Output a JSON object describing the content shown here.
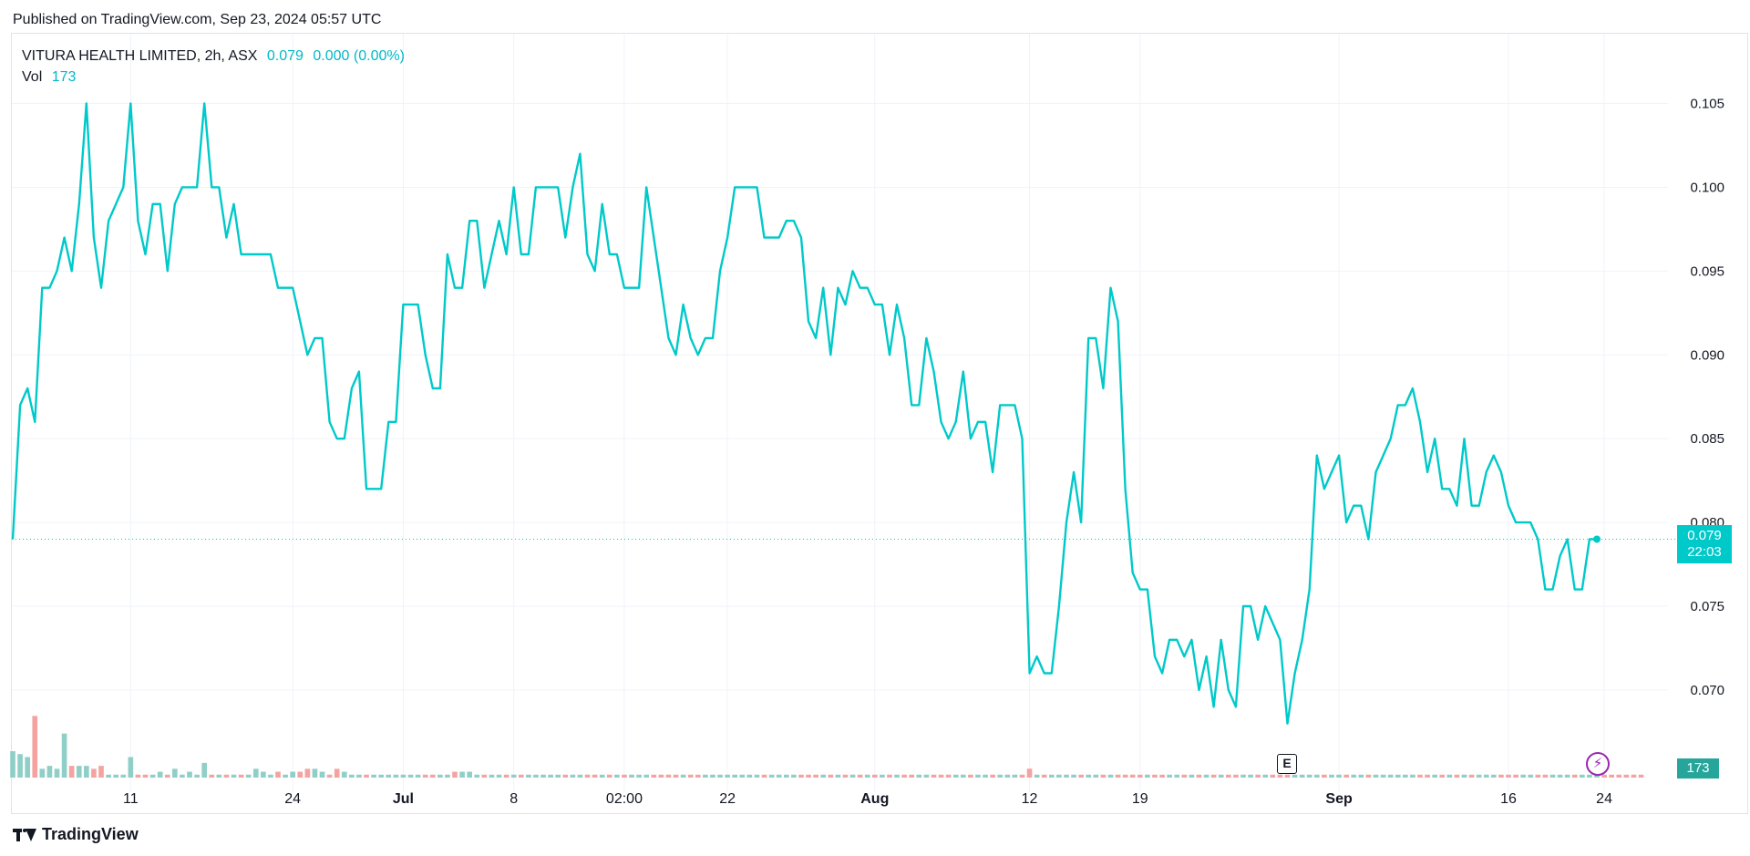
{
  "published": "Published on TradingView.com, Sep 23, 2024 05:57 UTC",
  "legend": {
    "symbol": "VITURA HEALTH LIMITED, 2h, ASX",
    "price": "0.079",
    "change": "0.000 (0.00%)",
    "vol_label": "Vol",
    "vol_value": "173"
  },
  "brand": "TradingView",
  "price_tag": {
    "price": "0.079",
    "countdown": "22:03"
  },
  "vol_tag": "173",
  "earnings_marker": "E",
  "flash_icon": "lightning-icon",
  "colors": {
    "line": "#00c9c9",
    "vol_up": "#8fcfc7",
    "vol_down": "#f4a3a0",
    "grid": "#f0f3fa",
    "text": "#131722"
  },
  "chart_data": {
    "type": "line",
    "title": "VITURA HEALTH LIMITED, 2h, ASX",
    "xlabel": "",
    "ylabel": "",
    "ylim": [
      0.0645,
      0.109
    ],
    "y_ticks": [
      "0.070",
      "0.075",
      "0.080",
      "0.085",
      "0.090",
      "0.095",
      "0.100",
      "0.105"
    ],
    "x_ticks": [
      {
        "label": "11",
        "i": 16,
        "bold": false
      },
      {
        "label": "24",
        "i": 38,
        "bold": false
      },
      {
        "label": "Jul",
        "i": 53,
        "bold": true
      },
      {
        "label": "8",
        "i": 68,
        "bold": false
      },
      {
        "label": "02:00",
        "i": 83,
        "bold": false
      },
      {
        "label": "22",
        "i": 97,
        "bold": false
      },
      {
        "label": "Aug",
        "i": 117,
        "bold": true
      },
      {
        "label": "12",
        "i": 138,
        "bold": false
      },
      {
        "label": "19",
        "i": 153,
        "bold": false
      },
      {
        "label": "Sep",
        "i": 180,
        "bold": true
      },
      {
        "label": "16",
        "i": 203,
        "bold": false
      },
      {
        "label": "24",
        "i": 216,
        "bold": false
      }
    ],
    "grid": true,
    "last_price_line": 0.079,
    "series": [
      {
        "values": [
          0.079,
          0.087,
          0.088,
          0.086,
          0.094,
          0.094,
          0.095,
          0.097,
          0.095,
          0.099,
          0.105,
          0.097,
          0.094,
          0.098,
          0.099,
          0.1,
          0.105,
          0.098,
          0.096,
          0.099,
          0.099,
          0.095,
          0.099,
          0.1,
          0.1,
          0.1,
          0.105,
          0.1,
          0.1,
          0.097,
          0.099,
          0.096,
          0.096,
          0.096,
          0.096,
          0.096,
          0.094,
          0.094,
          0.094,
          0.092,
          0.09,
          0.091,
          0.091,
          0.086,
          0.085,
          0.085,
          0.088,
          0.089,
          0.082,
          0.082,
          0.082,
          0.086,
          0.086,
          0.093,
          0.093,
          0.093,
          0.09,
          0.088,
          0.088,
          0.096,
          0.094,
          0.094,
          0.098,
          0.098,
          0.094,
          0.096,
          0.098,
          0.096,
          0.1,
          0.096,
          0.096,
          0.1,
          0.1,
          0.1,
          0.1,
          0.097,
          0.1,
          0.102,
          0.096,
          0.095,
          0.099,
          0.096,
          0.096,
          0.094,
          0.094,
          0.094,
          0.1,
          0.097,
          0.094,
          0.091,
          0.09,
          0.093,
          0.091,
          0.09,
          0.091,
          0.091,
          0.095,
          0.097,
          0.1,
          0.1,
          0.1,
          0.1,
          0.097,
          0.097,
          0.097,
          0.098,
          0.098,
          0.097,
          0.092,
          0.091,
          0.094,
          0.09,
          0.094,
          0.093,
          0.095,
          0.094,
          0.094,
          0.093,
          0.093,
          0.09,
          0.093,
          0.091,
          0.087,
          0.087,
          0.091,
          0.089,
          0.086,
          0.085,
          0.086,
          0.089,
          0.085,
          0.086,
          0.086,
          0.083,
          0.087,
          0.087,
          0.087,
          0.085,
          0.071,
          0.072,
          0.071,
          0.071,
          0.075,
          0.08,
          0.083,
          0.08,
          0.091,
          0.091,
          0.088,
          0.094,
          0.092,
          0.082,
          0.077,
          0.076,
          0.076,
          0.072,
          0.071,
          0.073,
          0.073,
          0.072,
          0.073,
          0.07,
          0.072,
          0.069,
          0.073,
          0.07,
          0.069,
          0.075,
          0.075,
          0.073,
          0.075,
          0.074,
          0.073,
          0.068,
          0.071,
          0.073,
          0.076,
          0.084,
          0.082,
          0.083,
          0.084,
          0.08,
          0.081,
          0.081,
          0.079,
          0.083,
          0.084,
          0.085,
          0.087,
          0.087,
          0.088,
          0.086,
          0.083,
          0.085,
          0.082,
          0.082,
          0.081,
          0.085,
          0.081,
          0.081,
          0.083,
          0.084,
          0.083,
          0.081,
          0.08,
          0.08,
          0.08,
          0.079,
          0.076,
          0.076,
          0.078,
          0.079,
          0.076,
          0.076,
          0.079,
          0.079
        ]
      },
      {
        "name": "Vol",
        "values": [
          9,
          8,
          7,
          21,
          3,
          4,
          3,
          15,
          4,
          4,
          4,
          3,
          4,
          1,
          1,
          1,
          7,
          1,
          1,
          1,
          2,
          1,
          3,
          1,
          2,
          1,
          5,
          1,
          1,
          1,
          1,
          1,
          1,
          3,
          2,
          1,
          2,
          1,
          2,
          2,
          3,
          3,
          2,
          1,
          3,
          2,
          1,
          1,
          1,
          1,
          1,
          1,
          1,
          1,
          1,
          1,
          1,
          1,
          1,
          1,
          2,
          2,
          2,
          1,
          1,
          1,
          1,
          1,
          1,
          1,
          1,
          1,
          1,
          1,
          1,
          1,
          1,
          1,
          1,
          1,
          1,
          1,
          1,
          1,
          1,
          1,
          1,
          1,
          1,
          1,
          1,
          1,
          1,
          1,
          1,
          1,
          1,
          1,
          1,
          1,
          1,
          1,
          1,
          1,
          1,
          1,
          1,
          1,
          1,
          1,
          1,
          1,
          1,
          1,
          1,
          1,
          1,
          1,
          1,
          1,
          1,
          1,
          1,
          1,
          1,
          1,
          1,
          1,
          1,
          1,
          1,
          1,
          1,
          1,
          1,
          1,
          1,
          1,
          1,
          1,
          1,
          1,
          1,
          1,
          1,
          1,
          1,
          1,
          1,
          1,
          1,
          1,
          1,
          1,
          1,
          1,
          1,
          1,
          1,
          1,
          1,
          1,
          1,
          1,
          1,
          1,
          1,
          1,
          1,
          1,
          1,
          1,
          1,
          1,
          1,
          1,
          1,
          1,
          1,
          1,
          1,
          1,
          1,
          1,
          1,
          1,
          1,
          1,
          1,
          1,
          1,
          1,
          1,
          1,
          1,
          1,
          1,
          1,
          1,
          1,
          1,
          1,
          1,
          1,
          1,
          1,
          1,
          1,
          1,
          1,
          1,
          1,
          1,
          1,
          1,
          1,
          1,
          1,
          1,
          1,
          1,
          1
        ]
      }
    ]
  }
}
